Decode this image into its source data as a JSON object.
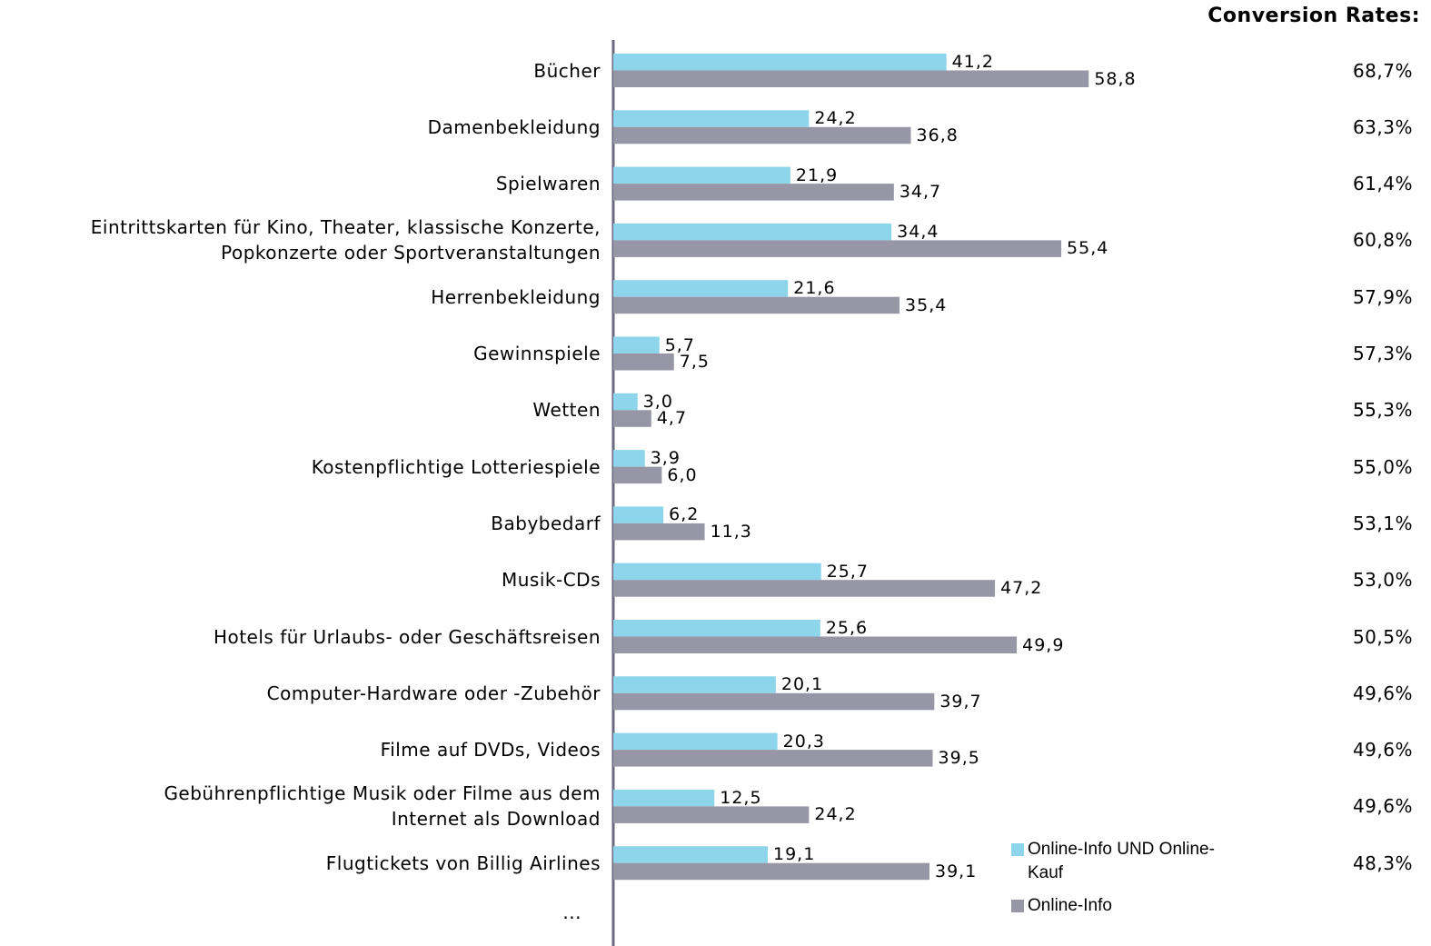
{
  "chart_data": {
    "type": "bar",
    "orientation": "horizontal",
    "categories": [
      "Bücher",
      "Damenbekleidung",
      "Spielwaren",
      "Eintrittskarten für Kino, Theater, klassische Konzerte,\nPopkonzerte oder Sportveranstaltungen",
      "Herrenbekleidung",
      "Gewinnspiele",
      "Wetten",
      "Kostenpflichtige Lotteriespiele",
      "Babybedarf",
      "Musik-CDs",
      "Hotels für Urlaubs- oder Geschäftsreisen",
      "Computer-Hardware oder -Zubehör",
      "Filme auf DVDs, Videos",
      "Gebührenpflichtige Musik oder Filme aus dem\nInternet als Download",
      "Flugtickets von Billig Airlines"
    ],
    "series": [
      {
        "name": "Online-Info UND Online-Kauf",
        "color": "#8dd5ea",
        "values": [
          41.2,
          24.2,
          21.9,
          34.4,
          21.6,
          5.7,
          3.0,
          3.9,
          6.2,
          25.7,
          25.6,
          20.1,
          20.3,
          12.5,
          19.1
        ],
        "value_labels": [
          "41,2",
          "24,2",
          "21,9",
          "34,4",
          "21,6",
          "5,7",
          "3,0",
          "3,9",
          "6,2",
          "25,7",
          "25,6",
          "20,1",
          "20,3",
          "12,5",
          "19,1"
        ]
      },
      {
        "name": "Online-Info",
        "color": "#9796a6",
        "values": [
          58.8,
          36.8,
          34.7,
          55.4,
          35.4,
          7.5,
          4.7,
          6.0,
          11.3,
          47.2,
          49.9,
          39.7,
          39.5,
          24.2,
          39.1
        ],
        "value_labels": [
          "58,8",
          "36,8",
          "34,7",
          "55,4",
          "35,4",
          "7,5",
          "4,7",
          "6,0",
          "11,3",
          "47,2",
          "49,9",
          "39,7",
          "39,5",
          "24,2",
          "39,1"
        ]
      }
    ],
    "xlim": [
      0,
      100
    ],
    "annotation_title": "Conversion Rates:",
    "annotations": [
      "68,7%",
      "63,3%",
      "61,4%",
      "60,8%",
      "57,9%",
      "57,3%",
      "55,3%",
      "55,0%",
      "53,1%",
      "53,0%",
      "50,5%",
      "49,6%",
      "49,6%",
      "49,6%",
      "48,3%"
    ],
    "note": "...",
    "legend": "bottom-right"
  }
}
